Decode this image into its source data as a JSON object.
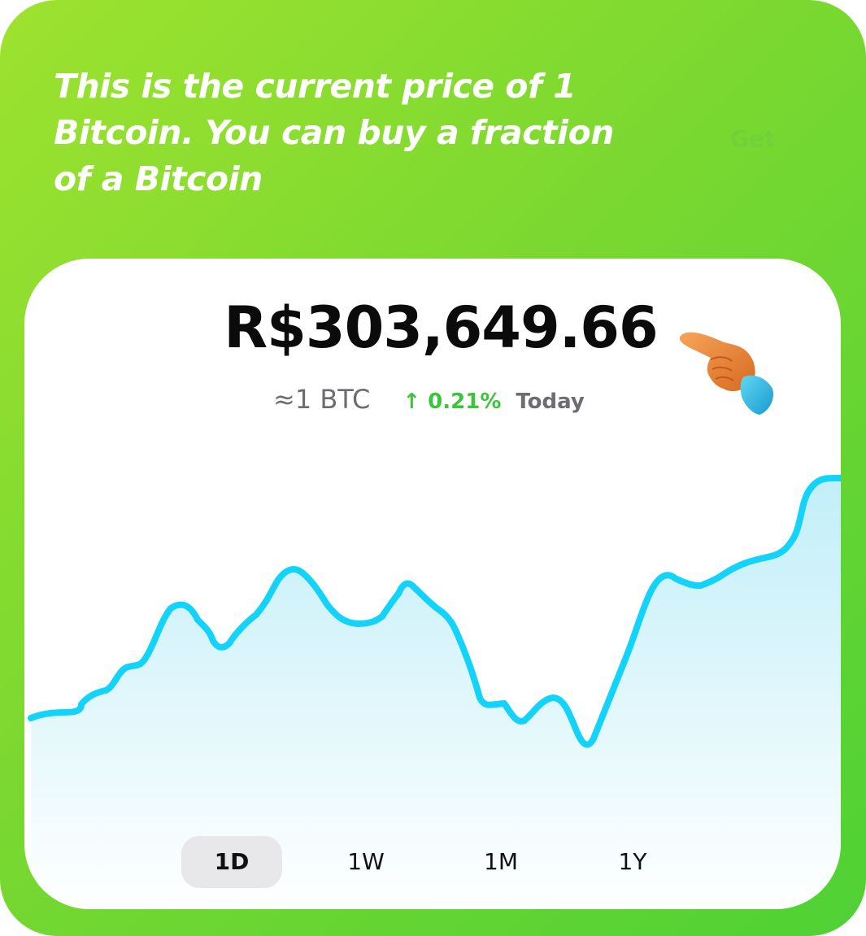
{
  "onboarding": {
    "headline": "This is the current price of 1 Bitcoin. You can buy a fraction of a Bitcoin",
    "background_action_label": "Get"
  },
  "price_card": {
    "price": "R$303,649.66",
    "unit_equivalent": "≈1 BTC",
    "change_arrow": "↑",
    "change_percent": "0.21%",
    "change_period": "Today",
    "pointer_icon": "backhand-index-pointing-left-icon"
  },
  "range_tabs": [
    {
      "label": "1D",
      "active": true
    },
    {
      "label": "1W",
      "active": false
    },
    {
      "label": "1M",
      "active": false
    },
    {
      "label": "1Y",
      "active": false
    }
  ],
  "colors": {
    "background_gradient_start": "#9ee22f",
    "background_gradient_end": "#4fd135",
    "line": "#13d3fa",
    "positive_change": "#3cc43a",
    "muted_text": "#6c6c72"
  },
  "chart_data": {
    "type": "area",
    "title": "",
    "xlabel": "",
    "ylabel": "",
    "x": [
      0,
      1,
      2,
      3,
      4,
      5,
      6,
      7,
      8,
      9,
      10,
      11,
      12,
      13,
      14,
      15,
      16,
      17,
      18,
      19,
      20,
      21,
      22,
      23,
      24,
      25,
      26,
      27,
      28,
      29,
      30,
      31,
      32,
      33,
      34,
      35,
      36,
      37,
      38,
      39,
      40
    ],
    "values": [
      0.08,
      0.09,
      0.14,
      0.21,
      0.38,
      0.32,
      0.25,
      0.35,
      0.46,
      0.4,
      0.32,
      0.33,
      0.45,
      0.4,
      0.33,
      0.03,
      0.03,
      -0.05,
      0.05,
      -0.12,
      0.05,
      0.3,
      0.43,
      0.42,
      0.46,
      0.5,
      0.52,
      0.56,
      0.68,
      0.71,
      0.72,
      0.71,
      0.7,
      0.7,
      0.71,
      0.72,
      0.72,
      0.73,
      0.73,
      0.74,
      0.75
    ],
    "grid": false,
    "legend": "none"
  }
}
